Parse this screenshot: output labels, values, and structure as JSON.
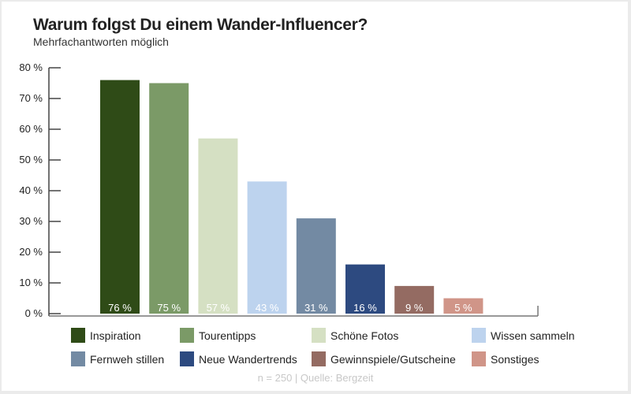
{
  "chart_data": {
    "type": "bar",
    "title": "Warum folgst Du einem Wander-Influencer?",
    "subtitle": "Mehrfachantworten möglich",
    "categories": [
      "Inspiration",
      "Tourentipps",
      "Schöne Fotos",
      "Wissen sammeln",
      "Fernweh stillen",
      "Neue Wandertrends",
      "Gewinnspiele/Gutscheine",
      "Sonstiges"
    ],
    "values": [
      76,
      75,
      57,
      43,
      31,
      16,
      9,
      5
    ],
    "value_labels": [
      "76 %",
      "75 %",
      "57 %",
      "43 %",
      "31 %",
      "16 %",
      "9 %",
      "5 %"
    ],
    "colors": [
      "#2f4b17",
      "#7b9a67",
      "#d5e0c3",
      "#bdd3ee",
      "#738aa3",
      "#2d4a80",
      "#946b62",
      "#d09588"
    ],
    "ylim": [
      0,
      80
    ],
    "yticks": [
      0,
      10,
      20,
      30,
      40,
      50,
      60,
      70,
      80
    ],
    "ytick_labels": [
      "0 %",
      "10 %",
      "20 %",
      "30 %",
      "40 %",
      "50 %",
      "60 %",
      "70 %",
      "80 %"
    ],
    "xlabel": "",
    "ylabel": "",
    "legend_position": "bottom",
    "grid": false,
    "source": "n = 250 | Quelle: Bergzeit"
  }
}
